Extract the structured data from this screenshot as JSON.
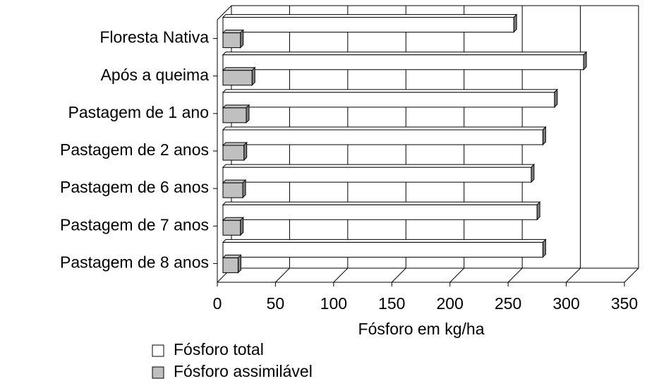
{
  "chart_data": {
    "type": "bar",
    "orientation": "horizontal",
    "categories": [
      "Floresta Nativa",
      "Após a queima",
      "Pastagem de 1 ano",
      "Pastagem de 2 anos",
      "Pastagem de 6 anos",
      "Pastagem de 7 anos",
      "Pastagem de 8 anos"
    ],
    "series": [
      {
        "name": "Fósforo total",
        "color": "#ffffff",
        "values": [
          250,
          310,
          285,
          275,
          265,
          270,
          275
        ]
      },
      {
        "name": "Fósforo assimilável",
        "color": "#c0c0c0",
        "values": [
          15,
          25,
          20,
          18,
          17,
          15,
          13
        ]
      }
    ],
    "xlabel": "Fósforo em kg/ha",
    "xlim": [
      0,
      350
    ],
    "xticks": [
      0,
      50,
      100,
      150,
      200,
      250,
      300,
      350
    ],
    "grid": true,
    "legend": "bottom"
  }
}
